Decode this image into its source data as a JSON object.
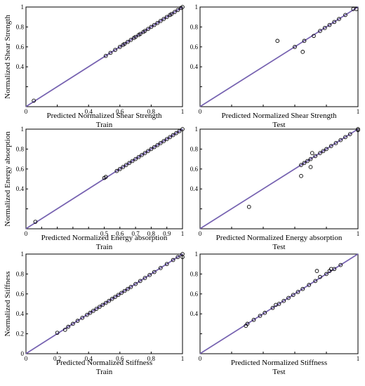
{
  "colors": {
    "fit_line": "#7b5fb0",
    "fit_line_secondary": "#5a7fb5",
    "marker_stroke": "#000000",
    "axes": "#000000",
    "background": "#ffffff"
  },
  "chart_data": [
    {
      "type": "scatter",
      "xlabel": "Predicted Normalized Shear Strength",
      "ylabel": "Normalized Shear Strength",
      "subtitle": "Train",
      "xlim": [
        0,
        1
      ],
      "ylim": [
        0,
        1
      ],
      "xticks": [
        0,
        0.2,
        0.4,
        0.6,
        0.8,
        1
      ],
      "yticks": [
        0,
        0.2,
        0.4,
        0.6,
        0.8,
        1
      ],
      "xtick_labels": [
        "0",
        "",
        "0.4",
        "0.6",
        "0.8",
        "1"
      ],
      "ytick_labels": [
        "",
        "",
        "0.4",
        "0.6",
        "0.8",
        "1"
      ],
      "grid": false,
      "fit_line": [
        [
          0,
          0
        ],
        [
          1,
          1
        ]
      ],
      "points": [
        [
          0.05,
          0.06
        ],
        [
          0.51,
          0.51
        ],
        [
          0.54,
          0.54
        ],
        [
          0.57,
          0.57
        ],
        [
          0.6,
          0.6
        ],
        [
          0.62,
          0.62
        ],
        [
          0.63,
          0.63
        ],
        [
          0.65,
          0.65
        ],
        [
          0.67,
          0.67
        ],
        [
          0.69,
          0.69
        ],
        [
          0.7,
          0.7
        ],
        [
          0.72,
          0.72
        ],
        [
          0.73,
          0.73
        ],
        [
          0.75,
          0.75
        ],
        [
          0.76,
          0.76
        ],
        [
          0.78,
          0.78
        ],
        [
          0.8,
          0.8
        ],
        [
          0.82,
          0.82
        ],
        [
          0.84,
          0.84
        ],
        [
          0.86,
          0.86
        ],
        [
          0.88,
          0.88
        ],
        [
          0.9,
          0.9
        ],
        [
          0.92,
          0.92
        ],
        [
          0.93,
          0.93
        ],
        [
          0.95,
          0.95
        ],
        [
          0.97,
          0.97
        ],
        [
          0.99,
          0.99
        ],
        [
          1.0,
          1.0
        ]
      ]
    },
    {
      "type": "scatter",
      "xlabel": "Predicted Normalized Shear Strength",
      "ylabel": "",
      "subtitle": "Test",
      "xlim": [
        0,
        1
      ],
      "ylim": [
        0,
        1
      ],
      "xticks": [
        0,
        0.2,
        0.4,
        0.6,
        0.8,
        1
      ],
      "yticks": [
        0,
        0.2,
        0.4,
        0.6,
        0.8,
        1
      ],
      "xtick_labels": [
        "0",
        "",
        "",
        "",
        "",
        "1"
      ],
      "ytick_labels": [
        "",
        "",
        "0.4",
        "0.6",
        "0.8",
        "1"
      ],
      "grid": false,
      "fit_line": [
        [
          0,
          0
        ],
        [
          1,
          1
        ]
      ],
      "points": [
        [
          0.49,
          0.66
        ],
        [
          0.6,
          0.6
        ],
        [
          0.65,
          0.55
        ],
        [
          0.66,
          0.66
        ],
        [
          0.72,
          0.71
        ],
        [
          0.76,
          0.76
        ],
        [
          0.79,
          0.79
        ],
        [
          0.82,
          0.82
        ],
        [
          0.85,
          0.85
        ],
        [
          0.88,
          0.88
        ],
        [
          0.92,
          0.92
        ],
        [
          0.97,
          0.98
        ],
        [
          0.99,
          0.98
        ]
      ]
    },
    {
      "type": "scatter",
      "xlabel": "Predicted Normalized Energy absorption",
      "ylabel": "Normalized Energy absorption",
      "subtitle": "Train",
      "xlim": [
        0,
        1
      ],
      "ylim": [
        0,
        1
      ],
      "xticks": [
        0,
        0.1,
        0.2,
        0.3,
        0.4,
        0.5,
        0.6,
        0.7,
        0.8,
        0.9,
        1
      ],
      "yticks": [
        0,
        0.2,
        0.4,
        0.6,
        0.8,
        1
      ],
      "xtick_labels": [
        "0",
        "",
        "",
        "",
        "",
        "0.5",
        "0.6",
        "0.7",
        "0.8",
        "0.9",
        "1"
      ],
      "ytick_labels": [
        "",
        "",
        "0.4",
        "0.6",
        "0.8",
        "1"
      ],
      "grid": false,
      "fit_line": [
        [
          0,
          0
        ],
        [
          1,
          1
        ]
      ],
      "points": [
        [
          0.06,
          0.07
        ],
        [
          0.5,
          0.51
        ],
        [
          0.51,
          0.52
        ],
        [
          0.58,
          0.58
        ],
        [
          0.6,
          0.6
        ],
        [
          0.62,
          0.62
        ],
        [
          0.64,
          0.64
        ],
        [
          0.66,
          0.66
        ],
        [
          0.68,
          0.68
        ],
        [
          0.7,
          0.7
        ],
        [
          0.72,
          0.72
        ],
        [
          0.74,
          0.74
        ],
        [
          0.76,
          0.76
        ],
        [
          0.78,
          0.78
        ],
        [
          0.8,
          0.8
        ],
        [
          0.82,
          0.82
        ],
        [
          0.84,
          0.84
        ],
        [
          0.86,
          0.86
        ],
        [
          0.88,
          0.88
        ],
        [
          0.9,
          0.9
        ],
        [
          0.92,
          0.92
        ],
        [
          0.94,
          0.94
        ],
        [
          0.96,
          0.96
        ],
        [
          0.98,
          0.98
        ],
        [
          1.0,
          1.0
        ]
      ]
    },
    {
      "type": "scatter",
      "xlabel": "Predicted Normalized Energy absorption",
      "ylabel": "",
      "subtitle": "Test",
      "xlim": [
        0,
        1
      ],
      "ylim": [
        0,
        1
      ],
      "xticks": [
        0,
        0.2,
        0.4,
        0.6,
        0.8,
        1
      ],
      "yticks": [
        0,
        0.2,
        0.4,
        0.6,
        0.8,
        1
      ],
      "xtick_labels": [
        "0",
        "",
        "",
        "",
        "",
        "1"
      ],
      "ytick_labels": [
        "",
        "",
        "0.4",
        "0.6",
        "0.8",
        "1"
      ],
      "grid": false,
      "fit_line": [
        [
          0,
          0
        ],
        [
          1,
          1
        ]
      ],
      "points": [
        [
          0.31,
          0.22
        ],
        [
          0.64,
          0.53
        ],
        [
          0.64,
          0.64
        ],
        [
          0.66,
          0.66
        ],
        [
          0.68,
          0.68
        ],
        [
          0.7,
          0.62
        ],
        [
          0.7,
          0.7
        ],
        [
          0.71,
          0.76
        ],
        [
          0.73,
          0.73
        ],
        [
          0.76,
          0.76
        ],
        [
          0.78,
          0.78
        ],
        [
          0.8,
          0.8
        ],
        [
          0.83,
          0.83
        ],
        [
          0.86,
          0.86
        ],
        [
          0.89,
          0.89
        ],
        [
          0.92,
          0.92
        ],
        [
          0.95,
          0.95
        ],
        [
          1.0,
          0.99
        ],
        [
          1.0,
          1.0
        ]
      ]
    },
    {
      "type": "scatter",
      "xlabel": "Predicted Normalized Stiffness",
      "ylabel": "Normalized Stiffness",
      "subtitle": "Train",
      "xlim": [
        0,
        1
      ],
      "ylim": [
        0,
        1
      ],
      "xticks": [
        0,
        0.2,
        0.4,
        0.6,
        0.8,
        1
      ],
      "yticks": [
        0,
        0.2,
        0.4,
        0.6,
        0.8,
        1
      ],
      "xtick_labels": [
        "0",
        "0.2",
        "0.4",
        "0.6",
        "0.8",
        "1"
      ],
      "ytick_labels": [
        "0",
        "0.2",
        "0.4",
        "0.6",
        "0.8",
        "1"
      ],
      "grid": false,
      "fit_line": [
        [
          0,
          0
        ],
        [
          1,
          1
        ]
      ],
      "points": [
        [
          0.2,
          0.21
        ],
        [
          0.25,
          0.24
        ],
        [
          0.27,
          0.27
        ],
        [
          0.3,
          0.3
        ],
        [
          0.33,
          0.33
        ],
        [
          0.36,
          0.36
        ],
        [
          0.39,
          0.39
        ],
        [
          0.41,
          0.41
        ],
        [
          0.43,
          0.43
        ],
        [
          0.45,
          0.45
        ],
        [
          0.47,
          0.47
        ],
        [
          0.49,
          0.49
        ],
        [
          0.51,
          0.51
        ],
        [
          0.53,
          0.53
        ],
        [
          0.55,
          0.55
        ],
        [
          0.57,
          0.57
        ],
        [
          0.59,
          0.59
        ],
        [
          0.61,
          0.61
        ],
        [
          0.63,
          0.63
        ],
        [
          0.65,
          0.65
        ],
        [
          0.67,
          0.67
        ],
        [
          0.7,
          0.7
        ],
        [
          0.73,
          0.73
        ],
        [
          0.76,
          0.76
        ],
        [
          0.79,
          0.79
        ],
        [
          0.82,
          0.82
        ],
        [
          0.86,
          0.86
        ],
        [
          0.9,
          0.9
        ],
        [
          0.94,
          0.94
        ],
        [
          0.97,
          0.97
        ],
        [
          1.0,
          0.97
        ],
        [
          1.0,
          1.0
        ]
      ]
    },
    {
      "type": "scatter",
      "xlabel": "Predicted Normalized Stiffness",
      "ylabel": "",
      "subtitle": "Test",
      "xlim": [
        0,
        1
      ],
      "ylim": [
        0,
        1
      ],
      "xticks": [
        0,
        0.2,
        0.4,
        0.6,
        0.8,
        1
      ],
      "yticks": [
        0,
        0.2,
        0.4,
        0.6,
        0.8,
        1
      ],
      "xtick_labels": [
        "0",
        "",
        "",
        "",
        "",
        "1"
      ],
      "ytick_labels": [
        "",
        "",
        "0.4",
        "0.6",
        "0.8",
        "1"
      ],
      "grid": false,
      "fit_line": [
        [
          0,
          0
        ],
        [
          1,
          1
        ]
      ],
      "points": [
        [
          0.29,
          0.28
        ],
        [
          0.3,
          0.3
        ],
        [
          0.34,
          0.34
        ],
        [
          0.38,
          0.38
        ],
        [
          0.41,
          0.41
        ],
        [
          0.46,
          0.46
        ],
        [
          0.48,
          0.49
        ],
        [
          0.5,
          0.5
        ],
        [
          0.53,
          0.53
        ],
        [
          0.56,
          0.56
        ],
        [
          0.59,
          0.59
        ],
        [
          0.62,
          0.62
        ],
        [
          0.65,
          0.65
        ],
        [
          0.69,
          0.69
        ],
        [
          0.73,
          0.73
        ],
        [
          0.74,
          0.83
        ],
        [
          0.76,
          0.77
        ],
        [
          0.8,
          0.8
        ],
        [
          0.82,
          0.83
        ],
        [
          0.83,
          0.85
        ],
        [
          0.85,
          0.85
        ],
        [
          0.89,
          0.89
        ]
      ]
    }
  ]
}
